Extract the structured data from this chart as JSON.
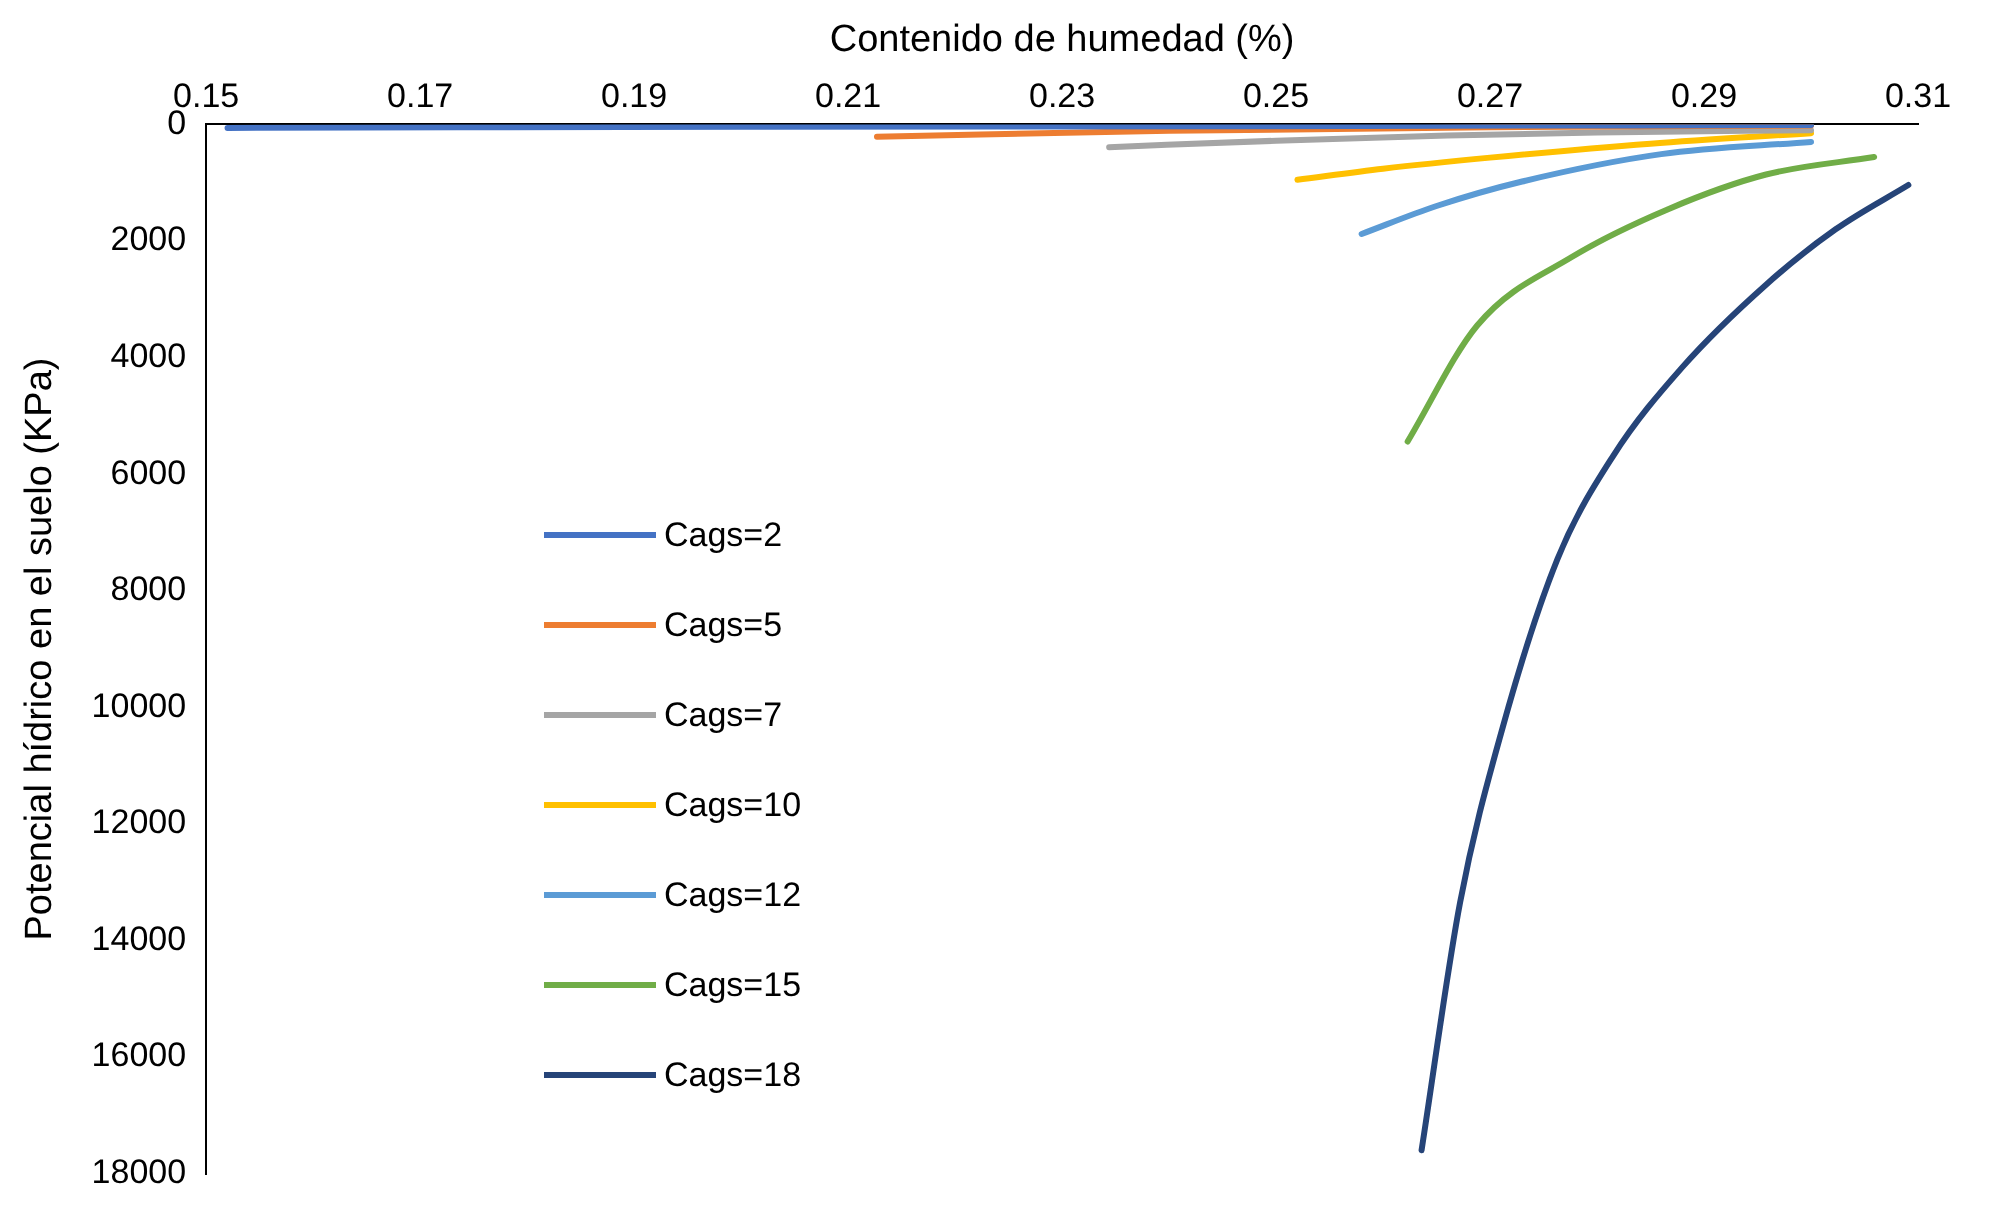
{
  "chart_data": {
    "type": "line",
    "xlabel": "Contenido de humedad (%)",
    "ylabel": "Potencial hídrico en el suelo (KPa)",
    "xlim": [
      0.15,
      0.31
    ],
    "xticks": [
      0.15,
      0.17,
      0.19,
      0.21,
      0.23,
      0.25,
      0.27,
      0.29,
      0.31
    ],
    "ylim": [
      18000,
      0
    ],
    "yticks": [
      0,
      2000,
      4000,
      6000,
      8000,
      10000,
      12000,
      14000,
      16000,
      18000
    ],
    "grid": false,
    "legend": "left",
    "marker": "none",
    "line_style": "solid",
    "series": [
      {
        "name": "Cags=2",
        "color": "#4472c4",
        "x": [
          0.152,
          0.2,
          0.25,
          0.3
        ],
        "values": [
          60,
          40,
          30,
          10
        ]
      },
      {
        "name": "Cags=5",
        "color": "#ed7d31",
        "x": [
          0.2127,
          0.24,
          0.27,
          0.3
        ],
        "values": [
          210,
          110,
          50,
          20
        ]
      },
      {
        "name": "Cags=7",
        "color": "#a5a5a5",
        "x": [
          0.2344,
          0.25,
          0.266,
          0.28,
          0.3
        ],
        "values": [
          390,
          280,
          190,
          140,
          100
        ]
      },
      {
        "name": "Cags=10",
        "color": "#ffc000",
        "x": [
          0.252,
          0.26,
          0.27,
          0.285,
          0.3
        ],
        "values": [
          950,
          760,
          570,
          330,
          150
        ]
      },
      {
        "name": "Cags=12",
        "color": "#5b9bd5",
        "x": [
          0.258,
          0.265,
          0.273,
          0.286,
          0.3
        ],
        "values": [
          1880,
          1400,
          980,
          510,
          300
        ]
      },
      {
        "name": "Cags=15",
        "color": "#70ad47",
        "x": [
          0.2623,
          0.2688,
          0.2776,
          0.2867,
          0.2958,
          0.3059
        ],
        "values": [
          5440,
          3450,
          2280,
          1450,
          860,
          560
        ]
      },
      {
        "name": "Cags=18",
        "color": "#264478",
        "x": [
          0.2636,
          0.2672,
          0.2711,
          0.2763,
          0.2815,
          0.288,
          0.2958,
          0.3023,
          0.3091
        ],
        "values": [
          17600,
          13350,
          10400,
          7460,
          5690,
          4160,
          2750,
          1800,
          1040
        ]
      }
    ]
  }
}
